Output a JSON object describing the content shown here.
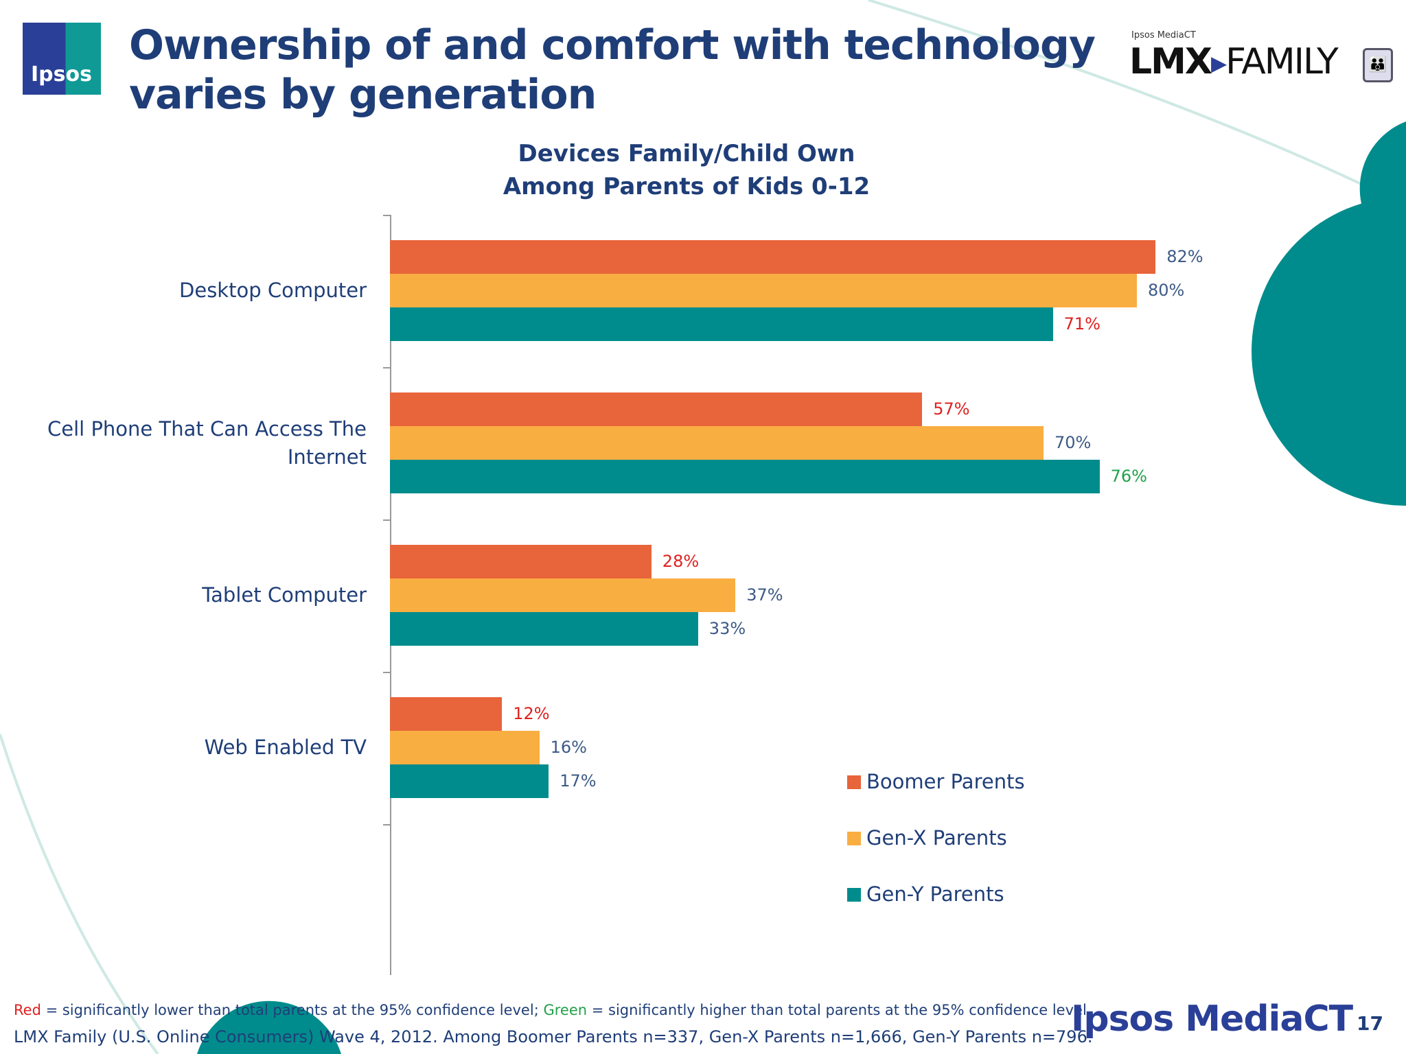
{
  "header": {
    "logo_text": "Ipsos",
    "title": "Ownership of and comfort with technology varies by generation",
    "partner_logo_small": "Ipsos MediaCT",
    "partner_logo_lmx": "LMX",
    "partner_logo_family": "FAMILY"
  },
  "chart_data": {
    "type": "bar",
    "orientation": "horizontal",
    "title": "Devices Family/Child Own\nAmong Parents of Kids 0-12",
    "title_line1": "Devices Family/Child Own",
    "title_line2": "Among Parents of Kids 0-12",
    "categories": [
      "Desktop Computer",
      "Cell Phone That Can Access The Internet",
      "Tablet Computer",
      "Web Enabled TV"
    ],
    "series": [
      {
        "name": "Boomer Parents",
        "color": "#E8643A",
        "values": [
          82,
          57,
          28,
          12
        ],
        "labels": [
          "82%",
          "57%",
          "28%",
          "12%"
        ],
        "label_colors": [
          "#3d5a86",
          "#e02020",
          "#e02020",
          "#e02020"
        ]
      },
      {
        "name": "Gen-X Parents",
        "color": "#F9AE42",
        "values": [
          80,
          70,
          37,
          16
        ],
        "labels": [
          "80%",
          "70%",
          "37%",
          "16%"
        ],
        "label_colors": [
          "#3d5a86",
          "#3d5a86",
          "#3d5a86",
          "#3d5a86"
        ]
      },
      {
        "name": "Gen-Y Parents",
        "color": "#008C8C",
        "values": [
          71,
          76,
          33,
          17
        ],
        "labels": [
          "71%",
          "76%",
          "33%",
          "17%"
        ],
        "label_colors": [
          "#e02020",
          "#22a04a",
          "#3d5a86",
          "#3d5a86"
        ]
      }
    ],
    "unit": "%",
    "xlim": [
      0,
      100
    ],
    "grid": false,
    "legend_position": "bottom-right"
  },
  "footer": {
    "note_red": "Red",
    "note_mid": " = significantly lower than total parents at the 95% confidence level; ",
    "note_green": "Green",
    "note_end": " = significantly higher than total parents at the 95% confidence level",
    "source": "LMX Family (U.S. Online Consumers) Wave 4, 2012. Among Boomer Parents n=337, Gen-X Parents n=1,666, Gen-Y Parents n=796.",
    "brand": "Ipsos MediaCT",
    "page_number": "17"
  },
  "colors": {
    "title": "#1f3e78",
    "teal": "#008C8C",
    "red": "#e02020",
    "green": "#22a04a"
  }
}
